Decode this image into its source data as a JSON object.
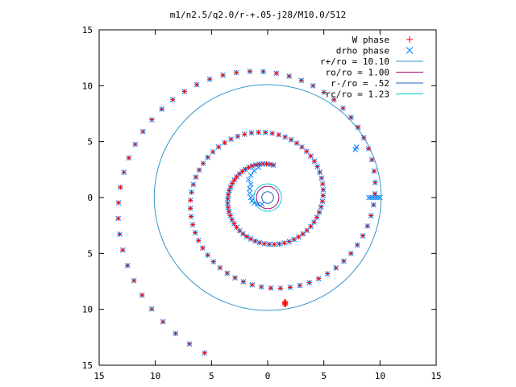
{
  "chart_data": {
    "type": "scatter",
    "title": "m1/n2.5/q2.0/r-+.05-j28/M10.0/512",
    "xlabel": "",
    "ylabel": "",
    "xlim": [
      -15,
      15
    ],
    "ylim": [
      -15,
      15
    ],
    "x_tick_values": [
      -15,
      -10,
      -5,
      0,
      5,
      10,
      15
    ],
    "x_tick_labels": [
      "15",
      "10",
      "5",
      "0",
      "5",
      "10",
      "15"
    ],
    "y_tick_values": [
      15,
      10,
      5,
      0,
      -5,
      -10,
      -15
    ],
    "y_tick_labels": [
      "15",
      "10",
      "5",
      "0",
      "5",
      "10",
      "15"
    ],
    "grid": false,
    "legend_position": "top-right",
    "legend": [
      {
        "label": "W phase",
        "marker": "plus",
        "color": "#ff0000"
      },
      {
        "label": "drho phase",
        "marker": "cross",
        "color": "#0080ff"
      },
      {
        "label": "r+/ro = 10.10",
        "marker": "line",
        "color": "#3399cc"
      },
      {
        "label": "ro/ro = 1.00",
        "marker": "line",
        "color": "#aa0077"
      },
      {
        "label": "r-/ro = .52",
        "marker": "line",
        "color": "#1f5fbf"
      },
      {
        "label": "rc/ro = 1.23",
        "marker": "line",
        "color": "#00cccc"
      }
    ],
    "circles": [
      {
        "name": "r+/ro = 10.10",
        "center": [
          0,
          0
        ],
        "r": 10.1,
        "color": "#3399cc"
      },
      {
        "name": "ro/ro = 1.00",
        "center": [
          0,
          0
        ],
        "r": 1.0,
        "color": "#aa0077"
      },
      {
        "name": "r-/ro = .52",
        "center": [
          0,
          0
        ],
        "r": 0.52,
        "color": "#1f5fbf"
      },
      {
        "name": "rc/ro = 1.23",
        "center": [
          0,
          0
        ],
        "r": 1.23,
        "color": "#00cccc"
      }
    ],
    "series": [
      {
        "name": "W phase",
        "color": "#ff0000",
        "marker": "plus",
        "spiral": {
          "a": 3.0,
          "b": 0.105,
          "phase_deg": 90,
          "theta_start_deg": -10,
          "theta_end_deg": 900,
          "step_deg": 6
        },
        "extra_points": [
          [
            1.5,
            -9.3
          ],
          [
            1.5,
            -9.4
          ],
          [
            1.5,
            -9.5
          ],
          [
            1.5,
            -9.6
          ],
          [
            1.6,
            -9.3
          ],
          [
            1.6,
            -9.4
          ],
          [
            1.6,
            -9.5
          ],
          [
            1.6,
            -9.6
          ]
        ]
      },
      {
        "name": "drho phase",
        "color": "#0080ff",
        "marker": "cross",
        "spiral": {
          "a": 3.0,
          "b": 0.105,
          "phase_deg": 90,
          "theta_start_deg": -10,
          "theta_end_deg": 900,
          "step_deg": 6
        },
        "extra_points": [
          [
            -1.5,
            1.2
          ],
          [
            -1.6,
            0.8
          ],
          [
            -1.6,
            0.4
          ],
          [
            -1.5,
            0.0
          ],
          [
            -1.4,
            -0.3
          ],
          [
            -1.2,
            -0.5
          ],
          [
            -0.9,
            -0.6
          ],
          [
            -0.5,
            -0.6
          ],
          [
            -1.7,
            1.6
          ],
          [
            -1.5,
            2.0
          ],
          [
            -1.2,
            2.4
          ],
          [
            -0.8,
            2.7
          ],
          [
            9.0,
            0.0
          ],
          [
            9.2,
            0.0
          ],
          [
            9.4,
            0.0
          ],
          [
            9.6,
            0.0
          ],
          [
            9.8,
            0.0
          ],
          [
            10.0,
            0.0
          ],
          [
            7.9,
            4.5
          ],
          [
            7.8,
            4.3
          ]
        ]
      }
    ]
  }
}
